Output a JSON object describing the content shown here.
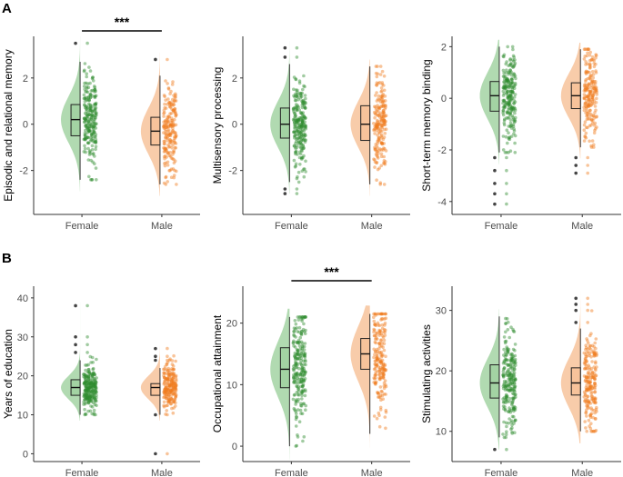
{
  "figure": {
    "panel_labels": [
      "A",
      "B"
    ]
  },
  "colors": {
    "female": "#2e8b2e",
    "female_fill": "#a3d3a3",
    "male": "#f07d1f",
    "male_fill": "#f7c39b",
    "axis": "#333333",
    "outlier": "#444444"
  },
  "chart_data": [
    {
      "id": "c1",
      "type": "raincloud",
      "title": "",
      "ylabel": "Episodic and relational memory",
      "categories": [
        "Female",
        "Male"
      ],
      "ylim": [
        -3.9,
        3.8
      ],
      "yticks": [
        -2,
        0,
        2
      ],
      "significance": "***",
      "sig_between": [
        "Female",
        "Male"
      ],
      "groups": [
        {
          "name": "Female",
          "median": 0.2,
          "q1": -0.5,
          "q3": 0.85,
          "whisker_low": -2.4,
          "whisker_high": 2.7,
          "n_points": 230,
          "outliers": [
            3.5
          ],
          "spread": 1.0,
          "max": 3.5
        },
        {
          "name": "Male",
          "median": -0.3,
          "q1": -0.9,
          "q3": 0.3,
          "whisker_low": -2.6,
          "whisker_high": 2.1,
          "n_points": 200,
          "outliers": [
            2.8
          ],
          "spread": 1.0,
          "max": 2.8
        }
      ]
    },
    {
      "id": "c2",
      "type": "raincloud",
      "title": "",
      "ylabel": "Multisensory processing",
      "categories": [
        "Female",
        "Male"
      ],
      "ylim": [
        -3.9,
        3.8
      ],
      "yticks": [
        -2,
        0,
        2
      ],
      "significance": "",
      "sig_between": [],
      "groups": [
        {
          "name": "Female",
          "median": 0.0,
          "q1": -0.6,
          "q3": 0.7,
          "whisker_low": -2.5,
          "whisker_high": 2.6,
          "n_points": 230,
          "outliers": [
            -2.8,
            -3.0,
            2.9,
            3.3
          ],
          "spread": 1.0,
          "max": 3.3
        },
        {
          "name": "Male",
          "median": 0.0,
          "q1": -0.7,
          "q3": 0.8,
          "whisker_low": -2.6,
          "whisker_high": 2.5,
          "n_points": 200,
          "outliers": [],
          "spread": 1.0,
          "max": 2.5
        }
      ]
    },
    {
      "id": "c3",
      "type": "raincloud",
      "title": "",
      "ylabel": "Short-term memory binding",
      "categories": [
        "Female",
        "Male"
      ],
      "ylim": [
        -4.5,
        2.4
      ],
      "yticks": [
        -4,
        -2,
        0,
        2
      ],
      "significance": "",
      "sig_between": [],
      "groups": [
        {
          "name": "Female",
          "median": 0.1,
          "q1": -0.5,
          "q3": 0.65,
          "whisker_low": -2.1,
          "whisker_high": 2.0,
          "n_points": 230,
          "outliers": [
            -2.3,
            -2.8,
            -3.3,
            -3.7,
            -4.1
          ],
          "spread": 0.9,
          "max": 2.0
        },
        {
          "name": "Male",
          "median": 0.1,
          "q1": -0.4,
          "q3": 0.6,
          "whisker_low": -1.9,
          "whisker_high": 1.9,
          "n_points": 200,
          "outliers": [
            -2.3,
            -2.6,
            -2.9
          ],
          "spread": 0.85,
          "max": 1.9
        }
      ]
    },
    {
      "id": "c4",
      "type": "raincloud",
      "title": "",
      "ylabel": "Years of education",
      "categories": [
        "Female",
        "Male"
      ],
      "ylim": [
        -2,
        43
      ],
      "yticks": [
        0,
        10,
        20,
        30,
        40
      ],
      "significance": "",
      "sig_between": [],
      "groups": [
        {
          "name": "Female",
          "median": 17,
          "q1": 15,
          "q3": 19,
          "whisker_low": 10,
          "whisker_high": 24,
          "n_points": 230,
          "outliers": [
            26,
            28,
            30,
            38
          ],
          "spread": 3.0,
          "max": 38
        },
        {
          "name": "Male",
          "median": 17,
          "q1": 15,
          "q3": 18,
          "whisker_low": 10,
          "whisker_high": 22,
          "n_points": 200,
          "outliers": [
            0,
            10,
            24,
            25,
            27
          ],
          "spread": 3.0,
          "max": 27
        }
      ]
    },
    {
      "id": "c5",
      "type": "raincloud",
      "title": "",
      "ylabel": "Occupational attainment",
      "categories": [
        "Female",
        "Male"
      ],
      "ylim": [
        -2.5,
        26
      ],
      "yticks": [
        0,
        10,
        20
      ],
      "significance": "***",
      "sig_between": [
        "Female",
        "Male"
      ],
      "groups": [
        {
          "name": "Female",
          "median": 12.5,
          "q1": 9.5,
          "q3": 16,
          "whisker_low": 0,
          "whisker_high": 21,
          "n_points": 230,
          "outliers": [],
          "spread": 4.5,
          "max": 21
        },
        {
          "name": "Male",
          "median": 15,
          "q1": 12.5,
          "q3": 17.5,
          "whisker_low": 2,
          "whisker_high": 21.5,
          "n_points": 200,
          "outliers": [],
          "spread": 4.5,
          "max": 21.5
        }
      ]
    },
    {
      "id": "c6",
      "type": "raincloud",
      "title": "",
      "ylabel": "Stimulating activities",
      "categories": [
        "Female",
        "Male"
      ],
      "ylim": [
        5,
        34
      ],
      "yticks": [
        10,
        20,
        30
      ],
      "significance": "",
      "sig_between": [],
      "groups": [
        {
          "name": "Female",
          "median": 18,
          "q1": 15.5,
          "q3": 21,
          "whisker_low": 9,
          "whisker_high": 29,
          "n_points": 230,
          "outliers": [
            7
          ],
          "spread": 4.0,
          "max": 29
        },
        {
          "name": "Male",
          "median": 18,
          "q1": 16,
          "q3": 20.5,
          "whisker_low": 10,
          "whisker_high": 27,
          "n_points": 200,
          "outliers": [
            28,
            30,
            31,
            32
          ],
          "spread": 4.0,
          "max": 32
        }
      ]
    }
  ]
}
